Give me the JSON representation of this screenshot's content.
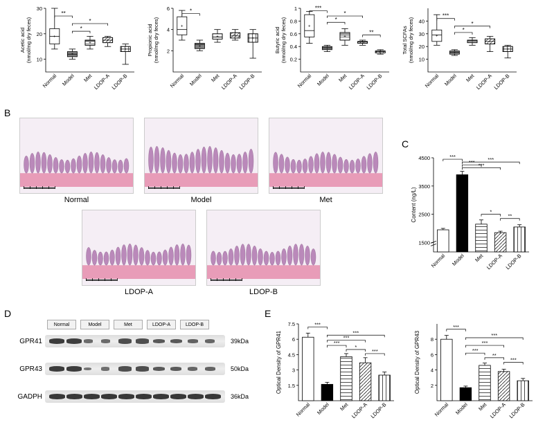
{
  "panels": {
    "B": "B",
    "C": "C",
    "D": "D",
    "E": "E"
  },
  "groups": [
    "Normal",
    "Model",
    "Met",
    "LDOP-A",
    "LDOP-B"
  ],
  "boxplots": [
    {
      "ylabel": "Acetic acid\n(nmol/mg dry feces)",
      "ylim": [
        5,
        30
      ],
      "yticks": [
        10,
        20,
        30
      ],
      "data": [
        {
          "min": 14,
          "q1": 16,
          "med": 19,
          "q3": 22,
          "max": 30,
          "fill": "#ffffff"
        },
        {
          "min": 10,
          "q1": 11,
          "med": 12,
          "q3": 13,
          "max": 14,
          "fill": "#7f7f7f"
        },
        {
          "min": 14,
          "q1": 15.5,
          "med": 17,
          "q3": 17.5,
          "max": 19,
          "fill": "#ffffff"
        },
        {
          "min": 15,
          "q1": 16.5,
          "med": 17.5,
          "q3": 18.5,
          "max": 19,
          "fill": "#ffffff"
        },
        {
          "min": 8,
          "q1": 13,
          "med": 14,
          "q3": 15,
          "max": 16,
          "fill": "#ffffff"
        }
      ],
      "sig": [
        {
          "from": 0,
          "to": 1,
          "y": 27,
          "label": "**"
        },
        {
          "from": 1,
          "to": 2,
          "y": 21,
          "label": "*"
        },
        {
          "from": 1,
          "to": 3,
          "y": 24,
          "label": "*"
        }
      ]
    },
    {
      "ylabel": "Propionic acid\n(nmol/mg dry feces)",
      "ylim": [
        0,
        6
      ],
      "yticks": [
        2,
        4,
        6
      ],
      "data": [
        {
          "min": 3.0,
          "q1": 3.5,
          "med": 4.0,
          "q3": 5.2,
          "max": 5.8,
          "fill": "#ffffff"
        },
        {
          "min": 2.0,
          "q1": 2.2,
          "med": 2.6,
          "q3": 2.7,
          "max": 3.0,
          "fill": "#7f7f7f"
        },
        {
          "min": 2.8,
          "q1": 3.1,
          "med": 3.3,
          "q3": 3.6,
          "max": 4.0,
          "fill": "#ffffff"
        },
        {
          "min": 3.0,
          "q1": 3.2,
          "med": 3.4,
          "q3": 3.7,
          "max": 4.0,
          "fill": "#ffffff"
        },
        {
          "min": 1.3,
          "q1": 2.8,
          "med": 3.2,
          "q3": 3.6,
          "max": 4.0,
          "fill": "#ffffff"
        }
      ],
      "sig": [
        {
          "from": 0,
          "to": 1,
          "y": 5.5,
          "label": "*"
        }
      ]
    },
    {
      "ylabel": "Butyric acid\n(nmol/mg dry feces)",
      "ylim": [
        0,
        1.0
      ],
      "yticks": [
        0.2,
        0.4,
        0.6,
        0.8,
        1.0
      ],
      "data": [
        {
          "min": 0.45,
          "q1": 0.55,
          "med": 0.65,
          "q3": 0.9,
          "max": 0.95,
          "fill": "#ffffff"
        },
        {
          "min": 0.32,
          "q1": 0.35,
          "med": 0.38,
          "q3": 0.4,
          "max": 0.42,
          "fill": "#7f7f7f"
        },
        {
          "min": 0.42,
          "q1": 0.5,
          "med": 0.58,
          "q3": 0.62,
          "max": 0.68,
          "fill": "#ffffff"
        },
        {
          "min": 0.42,
          "q1": 0.45,
          "med": 0.47,
          "q3": 0.48,
          "max": 0.5,
          "fill": "#ffffff"
        },
        {
          "min": 0.28,
          "q1": 0.3,
          "med": 0.32,
          "q3": 0.33,
          "max": 0.35,
          "fill": "#ffffff"
        }
      ],
      "sig": [
        {
          "from": 0,
          "to": 1,
          "y": 0.96,
          "label": "***"
        },
        {
          "from": 1,
          "to": 2,
          "y": 0.78,
          "label": "*"
        },
        {
          "from": 1,
          "to": 3,
          "y": 0.88,
          "label": "*"
        },
        {
          "from": 3,
          "to": 4,
          "y": 0.58,
          "label": "**"
        }
      ]
    },
    {
      "ylabel": "Total SCFAs\n(nmol/mg dry feces)",
      "ylim": [
        0,
        50
      ],
      "yticks": [
        10,
        20,
        30,
        40
      ],
      "data": [
        {
          "min": 21,
          "q1": 24,
          "med": 29,
          "q3": 33,
          "max": 45,
          "fill": "#ffffff"
        },
        {
          "min": 13,
          "q1": 14,
          "med": 15.5,
          "q3": 16.5,
          "max": 17.5,
          "fill": "#7f7f7f"
        },
        {
          "min": 21,
          "q1": 23,
          "med": 24,
          "q3": 25,
          "max": 27,
          "fill": "#ffffff"
        },
        {
          "min": 16,
          "q1": 22,
          "med": 24,
          "q3": 26,
          "max": 28,
          "fill": "#ffffff"
        },
        {
          "min": 11,
          "q1": 16,
          "med": 18,
          "q3": 20,
          "max": 21,
          "fill": "#ffffff"
        }
      ],
      "sig": [
        {
          "from": 0,
          "to": 1,
          "y": 42,
          "label": "***"
        },
        {
          "from": 1,
          "to": 2,
          "y": 31,
          "label": "*"
        },
        {
          "from": 1,
          "to": 3,
          "y": 36,
          "label": "*"
        }
      ]
    }
  ],
  "hist_groups": [
    "Normal",
    "Model",
    "Met",
    "LDOP-A",
    "LDOP-B"
  ],
  "panelC": {
    "ylabel": "Content (ng/L)",
    "ylim": [
      0,
      4500
    ],
    "yticks": [
      1500,
      2500,
      3500,
      4500
    ],
    "break": [
      0,
      1500
    ],
    "bars": [
      {
        "v": 1950,
        "err": 50,
        "pat": "open"
      },
      {
        "v": 3900,
        "err": 120,
        "pat": "solid"
      },
      {
        "v": 2150,
        "err": 150,
        "pat": "hstripe"
      },
      {
        "v": 1850,
        "err": 50,
        "pat": "diag"
      },
      {
        "v": 2050,
        "err": 80,
        "pat": "vstripe"
      }
    ],
    "sig": [
      {
        "from": 0,
        "to": 1,
        "y": 4450,
        "label": "***"
      },
      {
        "from": 1,
        "to": 2,
        "y": 4250,
        "label": "***"
      },
      {
        "from": 1,
        "to": 3,
        "y": 4150,
        "label": "***"
      },
      {
        "from": 1,
        "to": 4,
        "y": 4350,
        "label": "***"
      },
      {
        "from": 2,
        "to": 3,
        "y": 2500,
        "label": "*"
      },
      {
        "from": 3,
        "to": 4,
        "y": 2350,
        "label": "**"
      }
    ]
  },
  "wb": {
    "proteins": [
      {
        "name": "GPR41",
        "size": "39kDa",
        "intensity": [
          0.9,
          0.88,
          0.4,
          0.4,
          0.72,
          0.7,
          0.6,
          0.6,
          0.5,
          0.45
        ]
      },
      {
        "name": "GPR43",
        "size": "50kDa",
        "intensity": [
          0.9,
          0.9,
          0.3,
          0.35,
          0.7,
          0.7,
          0.6,
          0.58,
          0.45,
          0.48
        ]
      },
      {
        "name": "GADPH",
        "size": "36kDa",
        "intensity": [
          0.95,
          0.95,
          0.95,
          0.95,
          0.95,
          0.95,
          0.95,
          0.95,
          0.95,
          0.95
        ]
      }
    ]
  },
  "panelE": [
    {
      "ylabel": "Optical Density of GPR41",
      "ylim": [
        0,
        7.5
      ],
      "yticks": [
        1.5,
        3.0,
        4.5,
        6.0,
        7.5
      ],
      "bars": [
        {
          "v": 6.2,
          "err": 0.4,
          "pat": "open"
        },
        {
          "v": 1.6,
          "err": 0.2,
          "pat": "solid"
        },
        {
          "v": 4.3,
          "err": 0.3,
          "pat": "hstripe"
        },
        {
          "v": 3.7,
          "err": 0.5,
          "pat": "diag"
        },
        {
          "v": 2.5,
          "err": 0.3,
          "pat": "vstripe"
        }
      ],
      "sig": [
        {
          "from": 0,
          "to": 1,
          "y": 7.2,
          "label": "***"
        },
        {
          "from": 1,
          "to": 2,
          "y": 5.4,
          "label": "***"
        },
        {
          "from": 1,
          "to": 3,
          "y": 5.9,
          "label": "***"
        },
        {
          "from": 1,
          "to": 4,
          "y": 6.4,
          "label": "***"
        },
        {
          "from": 2,
          "to": 3,
          "y": 5.0,
          "label": "*"
        },
        {
          "from": 3,
          "to": 4,
          "y": 4.6,
          "label": "***"
        }
      ]
    },
    {
      "ylabel": "Optical Density of GPR43",
      "ylim": [
        0,
        10
      ],
      "yticks": [
        2,
        4,
        6,
        8
      ],
      "bars": [
        {
          "v": 8.0,
          "err": 0.5,
          "pat": "open"
        },
        {
          "v": 1.7,
          "err": 0.2,
          "pat": "solid"
        },
        {
          "v": 4.6,
          "err": 0.3,
          "pat": "hstripe"
        },
        {
          "v": 3.8,
          "err": 0.3,
          "pat": "diag"
        },
        {
          "v": 2.6,
          "err": 0.3,
          "pat": "vstripe"
        }
      ],
      "sig": [
        {
          "from": 0,
          "to": 1,
          "y": 9.3,
          "label": "***"
        },
        {
          "from": 1,
          "to": 2,
          "y": 6.2,
          "label": "***"
        },
        {
          "from": 1,
          "to": 3,
          "y": 7.2,
          "label": "***"
        },
        {
          "from": 1,
          "to": 4,
          "y": 8.2,
          "label": "***"
        },
        {
          "from": 2,
          "to": 3,
          "y": 5.6,
          "label": "**"
        },
        {
          "from": 3,
          "to": 4,
          "y": 5.0,
          "label": "***"
        }
      ]
    }
  ],
  "colors": {
    "solid": "#000000",
    "open": "#ffffff",
    "stroke": "#000000",
    "hist_tissue": "#c088b8"
  }
}
